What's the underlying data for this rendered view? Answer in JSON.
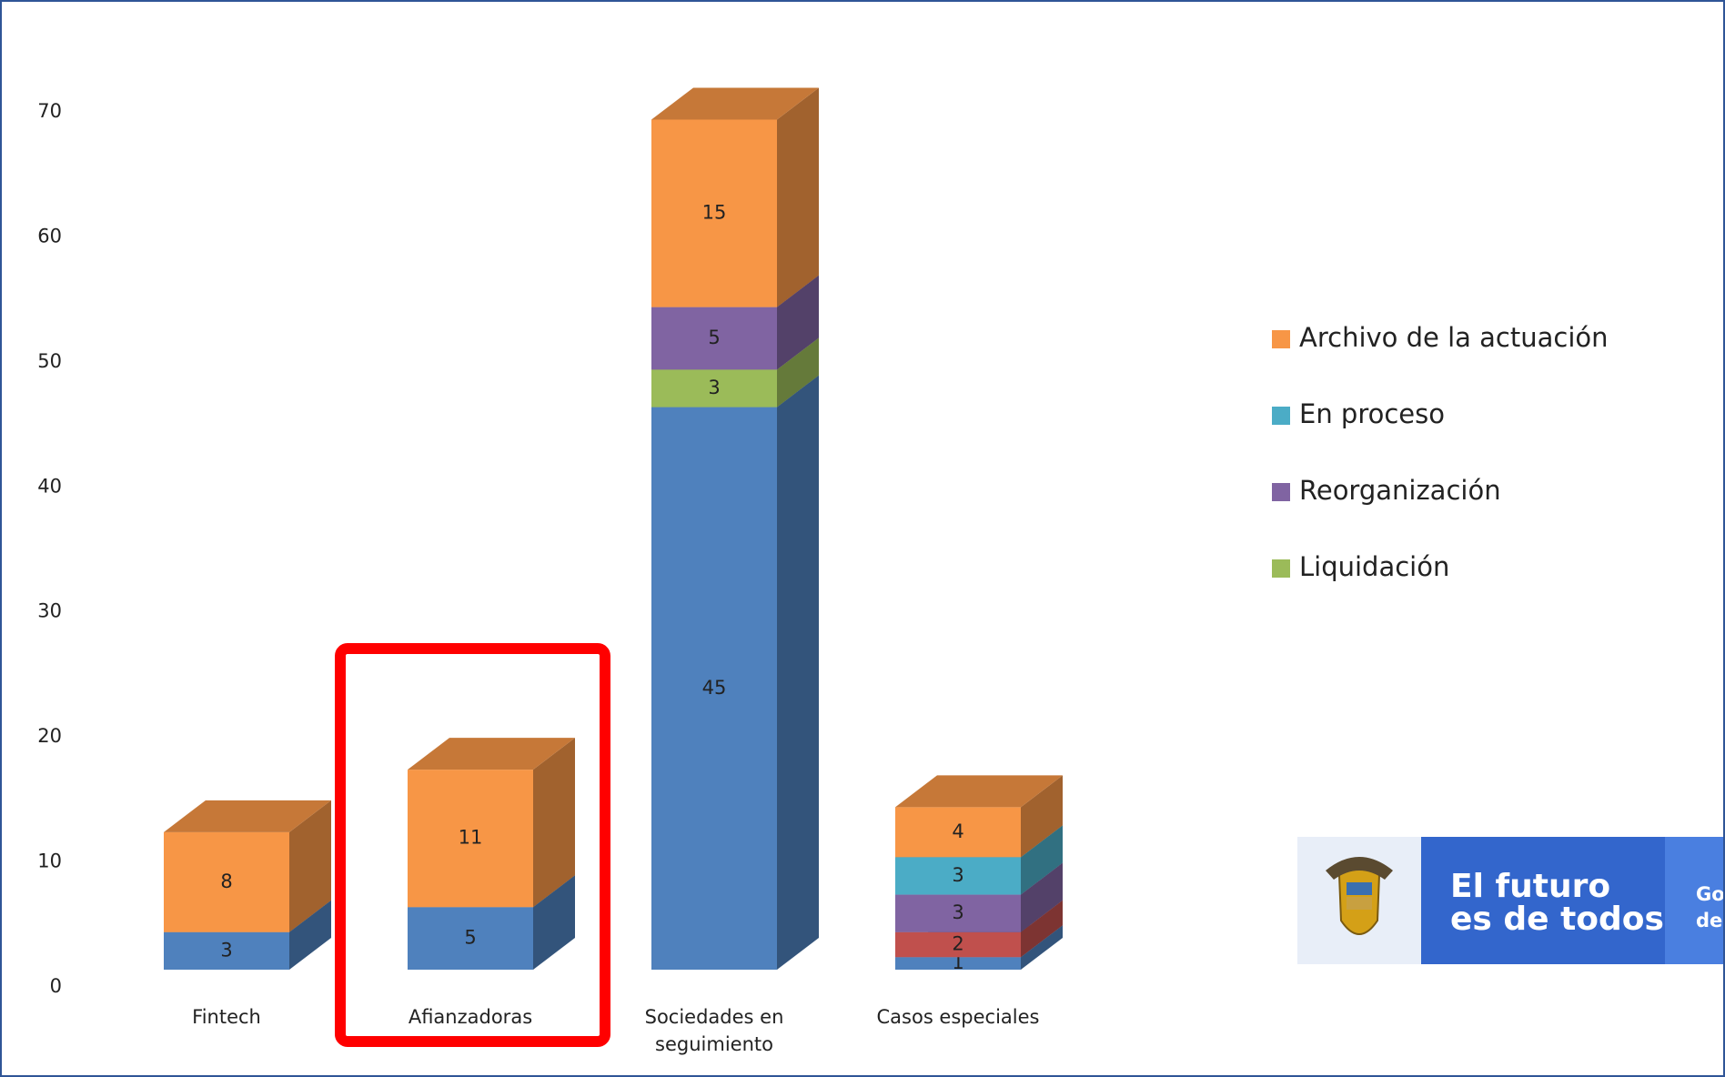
{
  "chart_data": {
    "type": "bar3d_stacked",
    "categories": [
      "Fintech",
      "Afianzadoras",
      "Sociedades en seguimiento",
      "Casos especiales"
    ],
    "series": [
      {
        "color": "#4f81bd",
        "values": [
          3,
          5,
          45,
          1
        ]
      },
      {
        "color": "#c0504d",
        "values": [
          null,
          null,
          null,
          2
        ]
      },
      {
        "name": "Liquidación",
        "color": "#9bbb59",
        "values": [
          null,
          null,
          3,
          null
        ]
      },
      {
        "name": "Reorganización",
        "color": "#8064a2",
        "values": [
          null,
          null,
          5,
          3
        ]
      },
      {
        "name": "En proceso",
        "color": "#4bacc6",
        "values": [
          null,
          null,
          null,
          3
        ]
      },
      {
        "name": "Archivo de la actuación",
        "color": "#f79646",
        "values": [
          8,
          11,
          15,
          4
        ]
      }
    ],
    "ylim": [
      0,
      70
    ],
    "yticks": [
      0,
      10,
      20,
      30,
      40,
      50,
      60,
      70
    ],
    "grid": false
  },
  "logo": {
    "line1": "El futuro",
    "line2": "es de todos",
    "cut1": "Go",
    "cut2": "de"
  }
}
